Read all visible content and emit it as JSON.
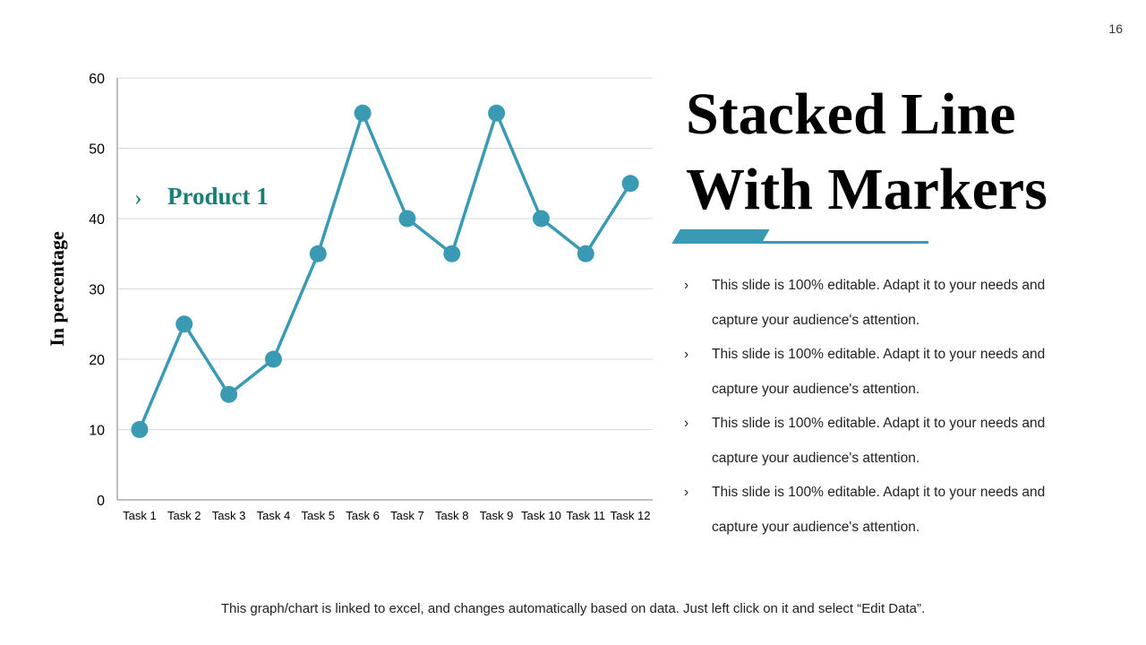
{
  "page_number": "16",
  "title_lines": [
    "Stacked Line",
    "With Markers"
  ],
  "bullets": [
    "This slide is 100% editable. Adapt it to your needs and capture your audience's attention.",
    "This slide is 100% editable. Adapt it to your needs and capture your audience's attention.",
    "This slide is 100% editable. Adapt it to your needs and capture your audience's attention.",
    "This slide is 100% editable. Adapt it to your needs and capture your audience's attention."
  ],
  "bullet_chevron": "›",
  "footnote": "This graph/chart is linked to excel, and changes automatically based on data. Just left click on it and select “Edit Data”.",
  "colors": {
    "series": "#3a9ab4",
    "legend_text": "#1a7e76",
    "gridline": "#d9d9d9",
    "axis": "#7f7f7f"
  },
  "chart_data": {
    "type": "line",
    "title": "",
    "xlabel": "",
    "ylabel": "In percentage",
    "categories": [
      "Task 1",
      "Task 2",
      "Task 3",
      "Task 4",
      "Task 5",
      "Task 6",
      "Task 7",
      "Task 8",
      "Task 9",
      "Task 10",
      "Task 11",
      "Task 12"
    ],
    "series": [
      {
        "name": "Product 1",
        "values": [
          10,
          25,
          15,
          20,
          35,
          55,
          40,
          35,
          55,
          40,
          35,
          45
        ],
        "markers": true
      }
    ],
    "ylim": [
      0,
      60
    ],
    "yticks": [
      0,
      10,
      20,
      30,
      40,
      50,
      60
    ],
    "grid": true,
    "legend_position": "top-left"
  }
}
